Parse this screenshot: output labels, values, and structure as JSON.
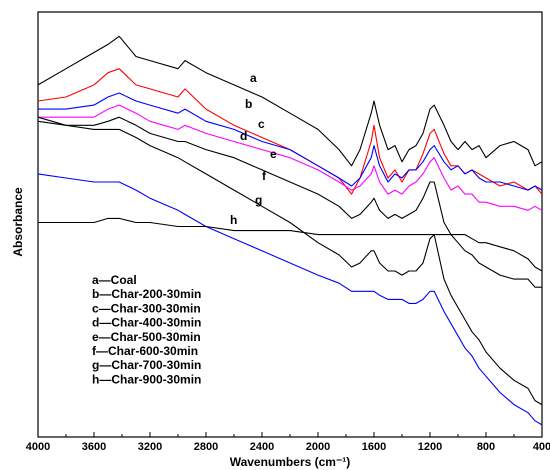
{
  "chart_data": {
    "type": "line",
    "title": "",
    "xlabel": "Wavenumbers (cm⁻¹)",
    "ylabel": "Absorbance",
    "xlim": [
      4000,
      400
    ],
    "x_reversed": true,
    "y_ticks_shown": false,
    "x_ticks": [
      "4000",
      "3600",
      "3200",
      "2800",
      "2400",
      "2000",
      "1600",
      "1200",
      "800",
      "400"
    ],
    "grid": false,
    "legend_position": "bottom-left",
    "legend": [
      {
        "marker": "a",
        "text": "Coal"
      },
      {
        "marker": "b",
        "text": "Char-200-30min"
      },
      {
        "marker": "c",
        "text": "Char-300-30min"
      },
      {
        "marker": "d",
        "text": "Char-400-30min"
      },
      {
        "marker": "e",
        "text": "Char-500-30min"
      },
      {
        "marker": "f",
        "text": "Char-600-30min"
      },
      {
        "marker": "g",
        "text": "Char-700-30min"
      },
      {
        "marker": "h",
        "text": "Char-900-30min"
      }
    ],
    "series": [
      {
        "name": "Coal",
        "label": "a",
        "color": "#000000",
        "x": [
          4000,
          3800,
          3600,
          3500,
          3420,
          3300,
          3200,
          3000,
          2950,
          2800,
          2600,
          2400,
          2200,
          2000,
          1850,
          1760,
          1700,
          1620,
          1600,
          1560,
          1500,
          1450,
          1400,
          1350,
          1300,
          1250,
          1200,
          1170,
          1100,
          1050,
          1000,
          950,
          900,
          850,
          800,
          700,
          600,
          500,
          450,
          400
        ],
        "y": [
          0.82,
          0.86,
          0.9,
          0.92,
          0.94,
          0.89,
          0.88,
          0.86,
          0.88,
          0.85,
          0.82,
          0.79,
          0.75,
          0.71,
          0.66,
          0.62,
          0.66,
          0.75,
          0.78,
          0.72,
          0.66,
          0.67,
          0.63,
          0.66,
          0.67,
          0.7,
          0.76,
          0.77,
          0.72,
          0.68,
          0.66,
          0.68,
          0.66,
          0.67,
          0.64,
          0.67,
          0.68,
          0.66,
          0.62,
          0.63
        ]
      },
      {
        "name": "Char-200-30min",
        "label": "b",
        "color": "#ff0000",
        "x": [
          4000,
          3800,
          3600,
          3500,
          3420,
          3300,
          3200,
          3000,
          2950,
          2800,
          2600,
          2400,
          2200,
          2000,
          1850,
          1760,
          1700,
          1620,
          1600,
          1560,
          1500,
          1450,
          1400,
          1350,
          1300,
          1250,
          1200,
          1170,
          1100,
          1050,
          1000,
          950,
          900,
          850,
          800,
          700,
          600,
          500,
          450,
          400
        ],
        "y": [
          0.78,
          0.79,
          0.82,
          0.85,
          0.86,
          0.82,
          0.81,
          0.79,
          0.81,
          0.76,
          0.72,
          0.69,
          0.66,
          0.62,
          0.59,
          0.55,
          0.59,
          0.68,
          0.72,
          0.64,
          0.59,
          0.61,
          0.58,
          0.61,
          0.61,
          0.65,
          0.7,
          0.71,
          0.65,
          0.62,
          0.62,
          0.6,
          0.61,
          0.6,
          0.59,
          0.57,
          0.58,
          0.56,
          0.57,
          0.55
        ]
      },
      {
        "name": "Char-300-30min",
        "label": "c",
        "color": "#0000ff",
        "x": [
          4000,
          3800,
          3600,
          3500,
          3420,
          3300,
          3200,
          3000,
          2950,
          2800,
          2600,
          2400,
          2200,
          2000,
          1850,
          1760,
          1700,
          1620,
          1600,
          1560,
          1500,
          1450,
          1400,
          1350,
          1300,
          1250,
          1200,
          1170,
          1100,
          1050,
          1000,
          950,
          900,
          850,
          800,
          700,
          600,
          500,
          450,
          400
        ],
        "y": [
          0.76,
          0.76,
          0.77,
          0.79,
          0.8,
          0.78,
          0.77,
          0.75,
          0.76,
          0.73,
          0.71,
          0.68,
          0.66,
          0.62,
          0.59,
          0.57,
          0.59,
          0.64,
          0.67,
          0.62,
          0.58,
          0.6,
          0.59,
          0.61,
          0.61,
          0.63,
          0.66,
          0.67,
          0.63,
          0.61,
          0.62,
          0.6,
          0.61,
          0.59,
          0.58,
          0.58,
          0.57,
          0.56,
          0.57,
          0.56
        ]
      },
      {
        "name": "Char-400-30min",
        "label": "d",
        "color": "#ff00ff",
        "x": [
          4000,
          3800,
          3600,
          3500,
          3420,
          3300,
          3200,
          3000,
          2950,
          2800,
          2600,
          2400,
          2200,
          2000,
          1850,
          1760,
          1700,
          1620,
          1600,
          1560,
          1500,
          1450,
          1400,
          1350,
          1300,
          1250,
          1200,
          1170,
          1100,
          1050,
          1000,
          950,
          900,
          850,
          800,
          700,
          600,
          500,
          450,
          400
        ],
        "y": [
          0.74,
          0.74,
          0.74,
          0.76,
          0.77,
          0.75,
          0.73,
          0.71,
          0.72,
          0.7,
          0.68,
          0.66,
          0.64,
          0.61,
          0.58,
          0.56,
          0.57,
          0.6,
          0.62,
          0.58,
          0.55,
          0.56,
          0.55,
          0.57,
          0.58,
          0.6,
          0.63,
          0.64,
          0.59,
          0.56,
          0.57,
          0.55,
          0.55,
          0.53,
          0.53,
          0.52,
          0.52,
          0.51,
          0.52,
          0.51
        ]
      },
      {
        "name": "Char-500-30min",
        "label": "e",
        "color": "#000000",
        "x": [
          4000,
          3800,
          3600,
          3500,
          3420,
          3300,
          3200,
          3000,
          2950,
          2800,
          2600,
          2400,
          2200,
          2000,
          1850,
          1760,
          1700,
          1620,
          1600,
          1560,
          1500,
          1450,
          1400,
          1350,
          1300,
          1250,
          1200,
          1170,
          1100,
          1050,
          1000,
          950,
          900,
          850,
          800,
          700,
          600,
          500,
          450,
          400
        ],
        "y": [
          0.73,
          0.72,
          0.72,
          0.73,
          0.74,
          0.72,
          0.7,
          0.68,
          0.68,
          0.66,
          0.64,
          0.61,
          0.58,
          0.55,
          0.52,
          0.49,
          0.5,
          0.53,
          0.54,
          0.51,
          0.49,
          0.5,
          0.49,
          0.5,
          0.51,
          0.54,
          0.58,
          0.58,
          0.48,
          0.45,
          0.43,
          0.41,
          0.4,
          0.38,
          0.37,
          0.35,
          0.34,
          0.34,
          0.32,
          0.32
        ]
      },
      {
        "name": "Char-600-30min",
        "label": "f",
        "color": "#000000",
        "x": [
          4000,
          3800,
          3600,
          3500,
          3420,
          3300,
          3200,
          3000,
          2950,
          2800,
          2600,
          2400,
          2200,
          2000,
          1850,
          1760,
          1700,
          1620,
          1600,
          1560,
          1500,
          1450,
          1400,
          1350,
          1300,
          1250,
          1200,
          1170,
          1100,
          1050,
          1000,
          950,
          900,
          850,
          800,
          700,
          600,
          500,
          450,
          400
        ],
        "y": [
          0.74,
          0.72,
          0.71,
          0.71,
          0.71,
          0.69,
          0.67,
          0.64,
          0.63,
          0.6,
          0.56,
          0.52,
          0.48,
          0.43,
          0.4,
          0.37,
          0.38,
          0.41,
          0.41,
          0.38,
          0.36,
          0.36,
          0.35,
          0.36,
          0.36,
          0.38,
          0.44,
          0.45,
          0.34,
          0.3,
          0.27,
          0.24,
          0.21,
          0.19,
          0.16,
          0.12,
          0.09,
          0.07,
          0.04,
          0.03
        ]
      },
      {
        "name": "Char-700-30min",
        "label": "g",
        "color": "#0000ff",
        "x": [
          4000,
          3800,
          3600,
          3500,
          3420,
          3300,
          3200,
          3000,
          2950,
          2800,
          2600,
          2400,
          2200,
          2000,
          1850,
          1760,
          1700,
          1620,
          1600,
          1560,
          1500,
          1450,
          1400,
          1350,
          1300,
          1250,
          1200,
          1170,
          1100,
          1050,
          1000,
          950,
          900,
          850,
          800,
          700,
          600,
          500,
          450,
          400
        ],
        "y": [
          0.6,
          0.59,
          0.58,
          0.58,
          0.58,
          0.56,
          0.54,
          0.51,
          0.5,
          0.47,
          0.44,
          0.41,
          0.38,
          0.35,
          0.33,
          0.31,
          0.31,
          0.31,
          0.31,
          0.3,
          0.29,
          0.29,
          0.29,
          0.28,
          0.28,
          0.29,
          0.31,
          0.31,
          0.26,
          0.23,
          0.2,
          0.17,
          0.15,
          0.12,
          0.1,
          0.06,
          0.03,
          0.01,
          -0.01,
          -0.02
        ]
      },
      {
        "name": "Char-900-30min",
        "label": "h",
        "color": "#000000",
        "x": [
          4000,
          3800,
          3600,
          3500,
          3420,
          3300,
          3200,
          3000,
          2950,
          2800,
          2600,
          2400,
          2200,
          2000,
          1850,
          1760,
          1700,
          1620,
          1600,
          1560,
          1500,
          1450,
          1400,
          1350,
          1300,
          1250,
          1200,
          1170,
          1100,
          1050,
          1000,
          950,
          900,
          850,
          800,
          700,
          600,
          500,
          450,
          400
        ],
        "y": [
          0.48,
          0.48,
          0.48,
          0.49,
          0.49,
          0.48,
          0.48,
          0.47,
          0.47,
          0.47,
          0.46,
          0.46,
          0.46,
          0.45,
          0.45,
          0.45,
          0.45,
          0.45,
          0.45,
          0.45,
          0.45,
          0.45,
          0.45,
          0.45,
          0.45,
          0.45,
          0.45,
          0.45,
          0.45,
          0.45,
          0.45,
          0.45,
          0.44,
          0.43,
          0.43,
          0.42,
          0.41,
          0.39,
          0.37,
          0.36
        ]
      }
    ]
  }
}
